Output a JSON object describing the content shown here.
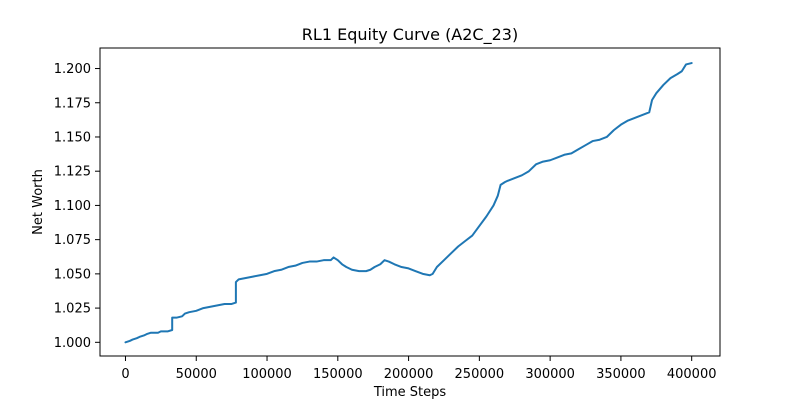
{
  "chart_data": {
    "type": "line",
    "title": "RL1 Equity Curve (A2C_23)",
    "xlabel": "Time Steps",
    "ylabel": "Net Worth",
    "xlim": [
      -18000,
      420000
    ],
    "ylim": [
      0.99,
      1.215
    ],
    "x_ticks": [
      0,
      50000,
      100000,
      150000,
      200000,
      250000,
      300000,
      350000,
      400000
    ],
    "y_ticks": [
      1.0,
      1.025,
      1.05,
      1.075,
      1.1,
      1.125,
      1.15,
      1.175,
      1.2
    ],
    "x_tick_labels": [
      "0",
      "50000",
      "100000",
      "150000",
      "200000",
      "250000",
      "300000",
      "350000",
      "400000"
    ],
    "y_tick_labels": [
      "1.000",
      "1.025",
      "1.050",
      "1.075",
      "1.100",
      "1.125",
      "1.150",
      "1.175",
      "1.200"
    ],
    "grid": false,
    "series": [
      {
        "color": "#1f77b4",
        "x": [
          0,
          3000,
          5000,
          8000,
          10000,
          13000,
          15000,
          18000,
          20000,
          23000,
          25000,
          28000,
          30000,
          33000,
          33001,
          36000,
          40000,
          42000,
          45000,
          50000,
          55000,
          60000,
          65000,
          70000,
          75000,
          78000,
          78001,
          80000,
          85000,
          90000,
          95000,
          100000,
          105000,
          110000,
          115000,
          120000,
          125000,
          130000,
          135000,
          140000,
          145000,
          147000,
          150000,
          153000,
          156000,
          160000,
          165000,
          170000,
          173000,
          176000,
          180000,
          183000,
          186000,
          190000,
          195000,
          200000,
          205000,
          210000,
          215000,
          217000,
          220000,
          225000,
          230000,
          235000,
          240000,
          245000,
          250000,
          255000,
          260000,
          263000,
          265000,
          268000,
          270000,
          275000,
          280000,
          285000,
          290000,
          295000,
          300000,
          305000,
          310000,
          315000,
          320000,
          325000,
          330000,
          335000,
          340000,
          345000,
          350000,
          355000,
          360000,
          365000,
          370000,
          372000,
          375000,
          380000,
          385000,
          390000,
          393000,
          396000,
          400000
        ],
        "values": [
          1.0,
          1.001,
          1.002,
          1.003,
          1.004,
          1.005,
          1.006,
          1.007,
          1.007,
          1.007,
          1.008,
          1.008,
          1.008,
          1.009,
          1.018,
          1.018,
          1.019,
          1.021,
          1.022,
          1.023,
          1.025,
          1.026,
          1.027,
          1.028,
          1.028,
          1.029,
          1.044,
          1.046,
          1.047,
          1.048,
          1.049,
          1.05,
          1.052,
          1.053,
          1.055,
          1.056,
          1.058,
          1.059,
          1.059,
          1.06,
          1.06,
          1.062,
          1.06,
          1.057,
          1.055,
          1.053,
          1.052,
          1.052,
          1.053,
          1.055,
          1.057,
          1.06,
          1.059,
          1.057,
          1.055,
          1.054,
          1.052,
          1.05,
          1.049,
          1.05,
          1.055,
          1.06,
          1.065,
          1.07,
          1.074,
          1.078,
          1.085,
          1.092,
          1.1,
          1.107,
          1.115,
          1.117,
          1.118,
          1.12,
          1.122,
          1.125,
          1.13,
          1.132,
          1.133,
          1.135,
          1.137,
          1.138,
          1.141,
          1.144,
          1.147,
          1.148,
          1.15,
          1.155,
          1.159,
          1.162,
          1.164,
          1.166,
          1.168,
          1.177,
          1.182,
          1.188,
          1.193,
          1.196,
          1.198,
          1.203,
          1.204
        ]
      }
    ]
  }
}
